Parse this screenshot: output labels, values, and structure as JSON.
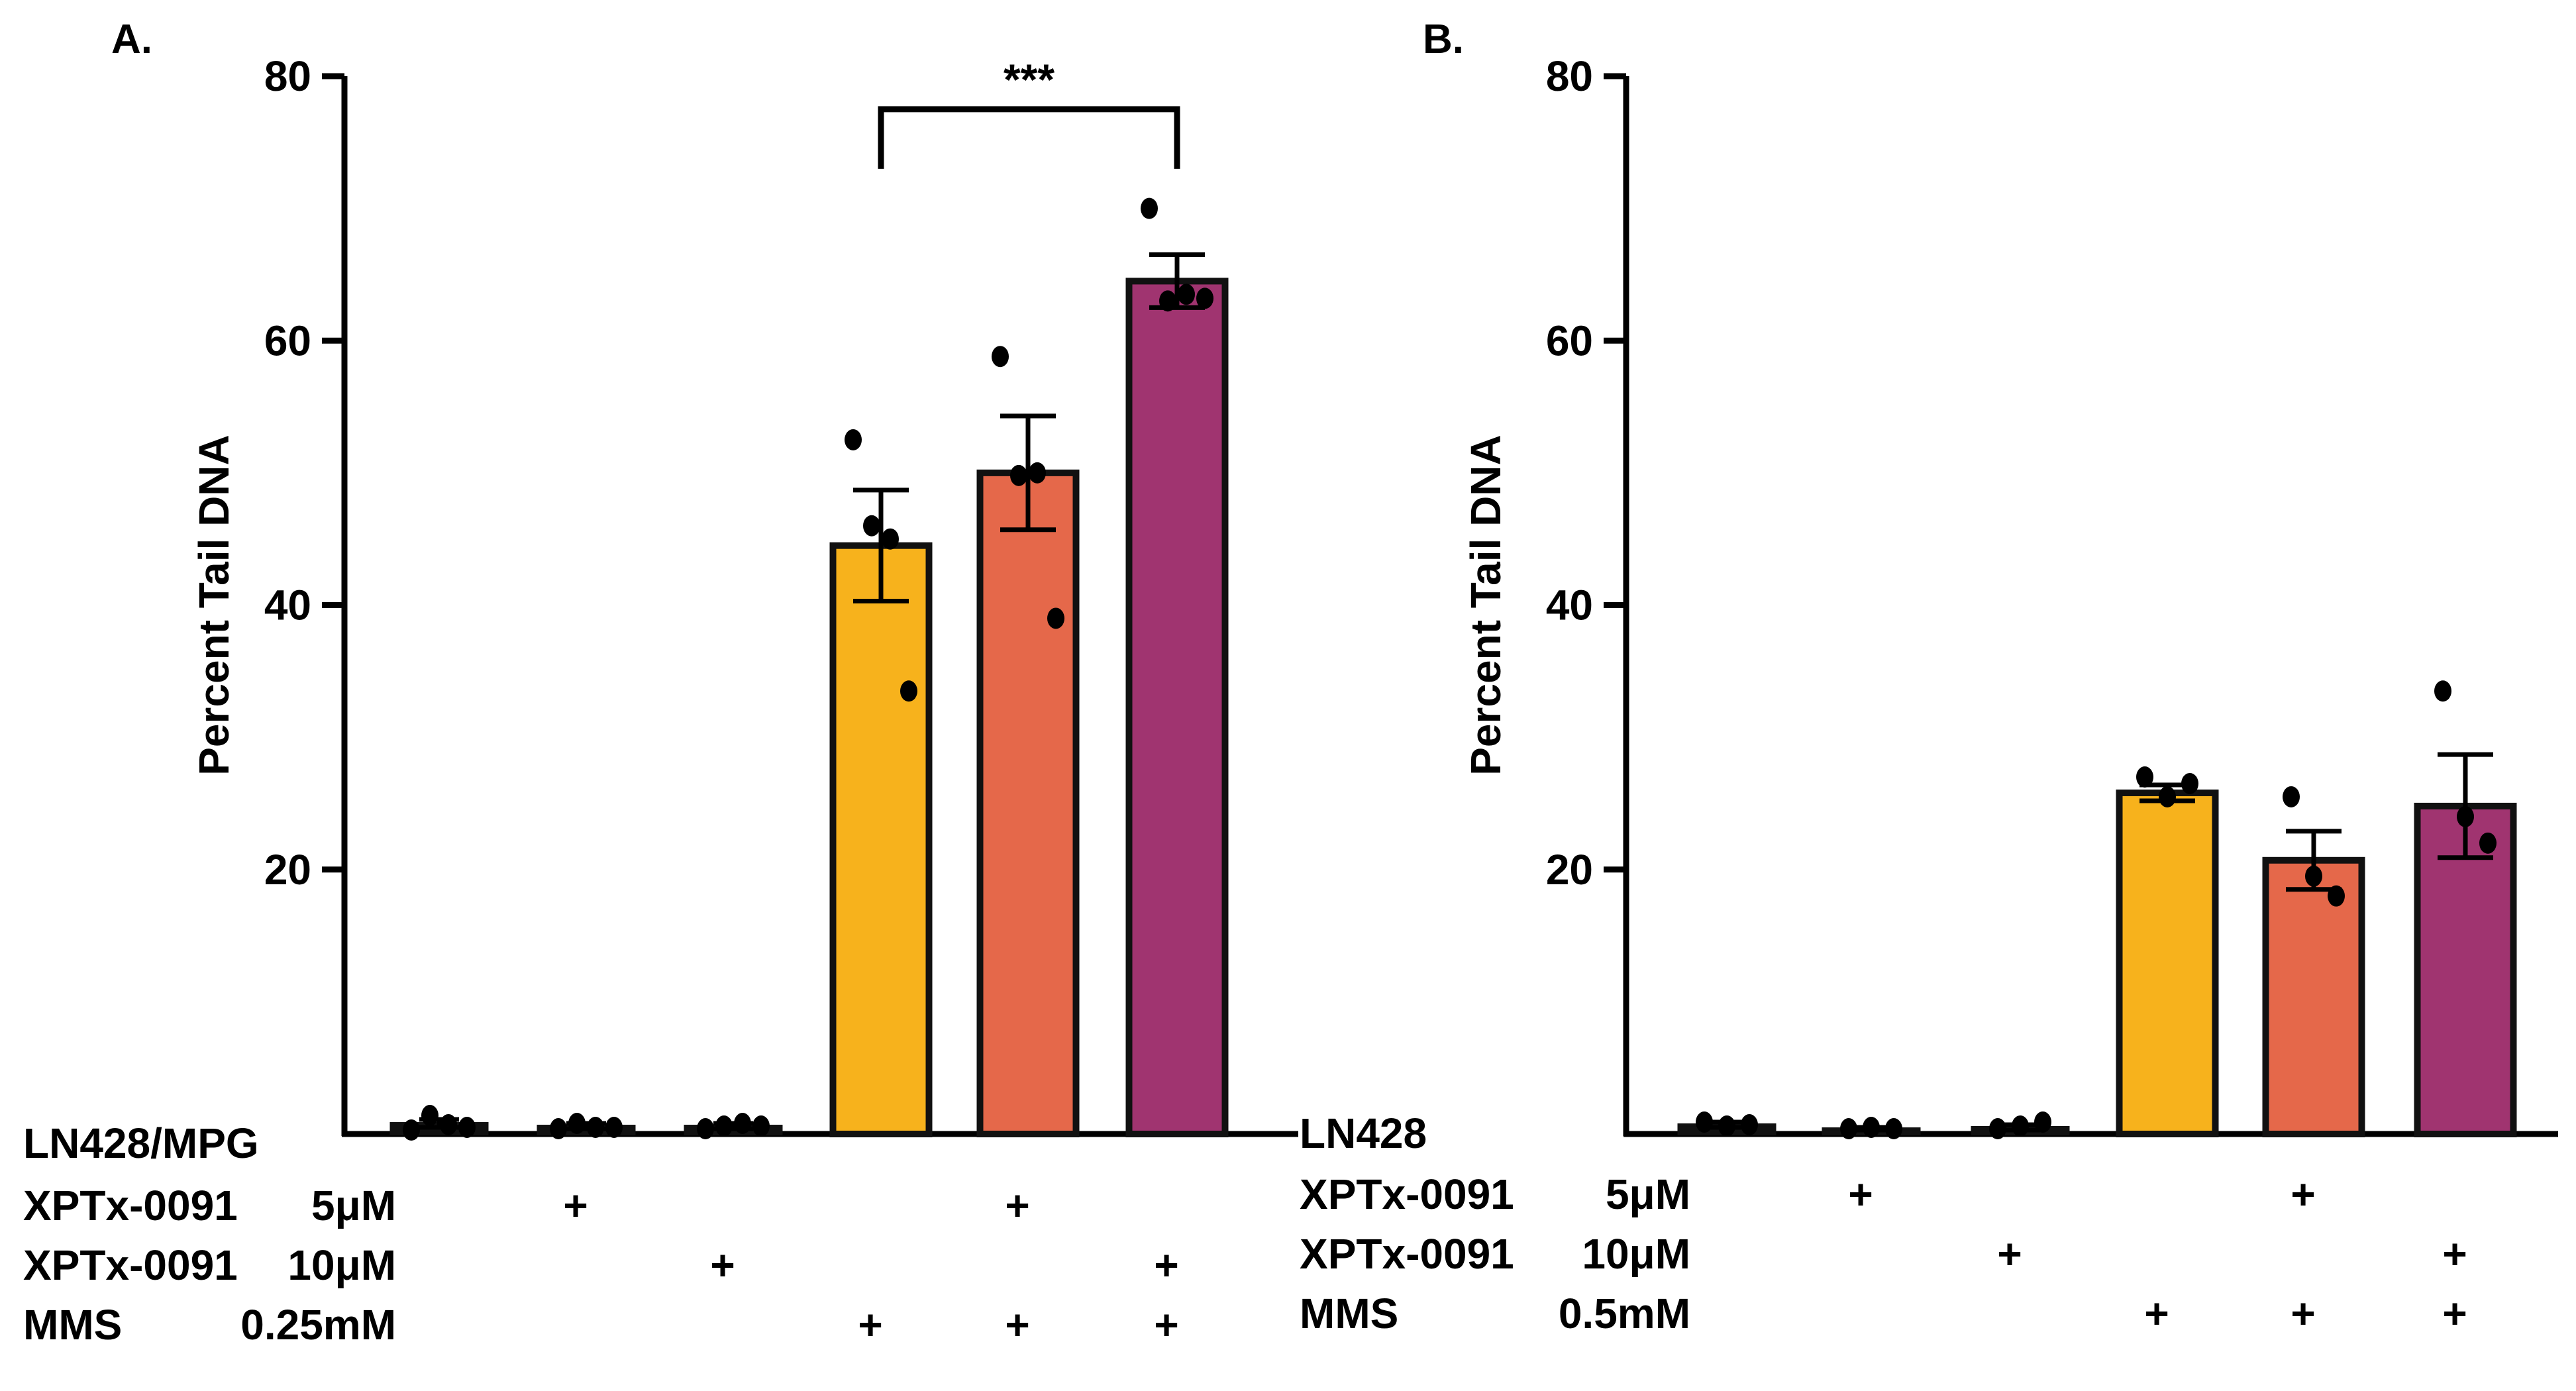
{
  "colors": {
    "axis": "#000000",
    "bar_outline": "#111111",
    "points": "#000000",
    "series": [
      "#111111",
      "#111111",
      "#111111",
      "#F7B21C",
      "#E5684A",
      "#A03470"
    ]
  },
  "chart_data": [
    {
      "type": "bar",
      "panel_label": "A.",
      "ylabel": "Percent Tail DNA",
      "ylim": [
        0,
        80
      ],
      "yticks": [
        20,
        40,
        60,
        80
      ],
      "grid": false,
      "values": [
        0.8,
        0.6,
        0.6,
        44.5,
        50.0,
        64.5
      ],
      "errors": [
        0.3,
        0.2,
        0.2,
        4.2,
        4.3,
        2.0
      ],
      "points": [
        [
          0.3,
          1.4,
          0.7,
          0.5
        ],
        [
          0.4,
          0.8,
          0.5,
          0.5
        ],
        [
          0.4,
          0.6,
          0.8,
          0.6
        ],
        [
          52.5,
          46.0,
          45.0,
          33.5
        ],
        [
          58.8,
          49.8,
          50.0,
          39.0
        ],
        [
          70.0,
          63.0,
          63.5,
          63.2
        ]
      ],
      "significance": {
        "from": 3,
        "to": 5,
        "label": "***",
        "y": 77.5
      },
      "condition_rows": [
        {
          "label": "LN428/MPG",
          "dose": "",
          "marks": [
            "",
            "",
            "",
            "",
            "",
            ""
          ]
        },
        {
          "label": "XPTx-0091",
          "dose": "5μM",
          "marks": [
            "",
            "+",
            "",
            "",
            "+",
            ""
          ]
        },
        {
          "label": "XPTx-0091",
          "dose": "10μM",
          "marks": [
            "",
            "",
            "+",
            "",
            "",
            "+"
          ]
        },
        {
          "label": "MMS",
          "dose": "0.25mM",
          "marks": [
            "",
            "",
            "",
            "+",
            "+",
            "+"
          ]
        }
      ]
    },
    {
      "type": "bar",
      "panel_label": "B.",
      "ylabel": "Percent Tail DNA",
      "ylim": [
        0,
        80
      ],
      "yticks": [
        20,
        40,
        60,
        80
      ],
      "grid": false,
      "values": [
        0.7,
        0.4,
        0.5,
        25.8,
        20.7,
        24.8
      ],
      "errors": [
        0.2,
        0.1,
        0.2,
        0.6,
        2.2,
        3.9
      ],
      "points": [
        [
          0.9,
          0.6,
          0.7
        ],
        [
          0.4,
          0.5,
          0.4
        ],
        [
          0.4,
          0.6,
          0.9
        ],
        [
          27.0,
          25.5,
          26.5
        ],
        [
          25.5,
          19.5,
          18.0
        ],
        [
          33.5,
          24.0,
          22.0
        ]
      ],
      "significance": null,
      "condition_rows": [
        {
          "label": "LN428",
          "dose": "",
          "marks": [
            "",
            "",
            "",
            "",
            "",
            ""
          ]
        },
        {
          "label": "XPTx-0091",
          "dose": "5μM",
          "marks": [
            "",
            "+",
            "",
            "",
            "+",
            ""
          ]
        },
        {
          "label": "XPTx-0091",
          "dose": "10μM",
          "marks": [
            "",
            "",
            "+",
            "",
            "",
            "+"
          ]
        },
        {
          "label": "MMS",
          "dose": "0.5mM",
          "marks": [
            "",
            "",
            "",
            "+",
            "+",
            "+"
          ]
        }
      ]
    }
  ]
}
